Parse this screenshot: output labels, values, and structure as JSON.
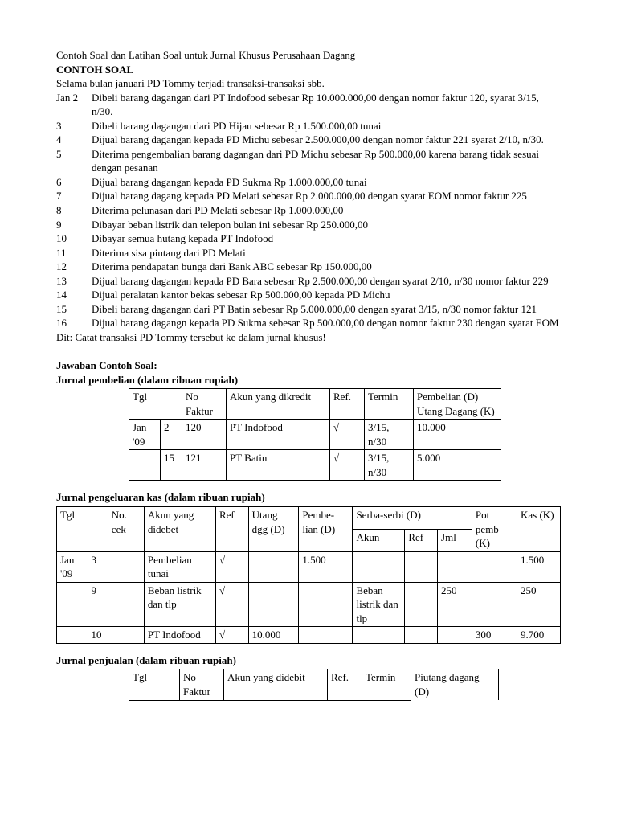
{
  "title": "Contoh Soal dan Latihan Soal untuk Jurnal Khusus Perusahaan Dagang",
  "heading1": "CONTOH SOAL",
  "intro": "Selama bulan januari PD Tommy terjadi transaksi-transaksi sbb.",
  "lines": [
    {
      "n": "Jan 2",
      "t": "Dibeli barang dagangan dari PT Indofood sebesar Rp 10.000.000,00 dengan nomor faktur 120, syarat 3/15, n/30."
    },
    {
      "n": "3",
      "t": "Dibeli barang dagangan dari PD Hijau sebesar Rp 1.500.000,00 tunai"
    },
    {
      "n": "4",
      "t": "Dijual barang dagangan kepada PD Michu sebesar 2.500.000,00 dengan nomor faktur 221 syarat 2/10, n/30."
    },
    {
      "n": "5",
      "t": "Diterima pengembalian barang dagangan dari PD Michu sebesar Rp 500.000,00 karena barang tidak sesuai dengan pesanan"
    },
    {
      "n": "6",
      "t": "Dijual barang dagangan kepada PD Sukma Rp 1.000.000,00 tunai"
    },
    {
      "n": "7",
      "t": "Dijual barang dagang kepada PD Melati sebesar Rp 2.000.000,00 dengan syarat EOM nomor faktur 225"
    },
    {
      "n": "8",
      "t": "Diterima pelunasan dari PD Melati sebesar Rp 1.000.000,00"
    },
    {
      "n": "9",
      "t": "Dibayar beban listrik dan telepon bulan ini sebesar Rp 250.000,00"
    },
    {
      "n": "10",
      "t": "Dibayar semua hutang kepada PT Indofood"
    },
    {
      "n": "11",
      "t": "Diterima sisa piutang dari PD Melati"
    },
    {
      "n": "12",
      "t": "Diterima pendapatan bunga dari Bank ABC sebesar Rp 150.000,00"
    },
    {
      "n": "13",
      "t": "Dijual barang dagangan kepada PD Bara sebesar Rp 2.500.000,00 dengan syarat 2/10, n/30 nomor faktur 229"
    },
    {
      "n": "14",
      "t": "Dijual peralatan kantor bekas sebesar Rp 500.000,00 kepada PD Michu"
    },
    {
      "n": "15",
      "t": "Dibeli barang dagangan dari PT Batin sebesar Rp 5.000.000,00 dengan syarat 3/15, n/30 nomor faktur 121"
    },
    {
      "n": "16",
      "t": "Dijual barang dagangn kepada PD Sukma sebesar Rp 500.000,00 dengan nomor faktur 230 dengan syarat EOM"
    }
  ],
  "dit": "Dit: Catat transaksi PD Tommy tersebut ke dalam jurnal khusus!",
  "answer_h": "Jawaban Contoh Soal:",
  "t1": {
    "title": "Jurnal pembelian (dalam ribuan rupiah)",
    "head": {
      "tgl": "Tgl",
      "no": "No Faktur",
      "akun": "Akun yang dikredit",
      "ref": "Ref.",
      "termin": "Termin",
      "last": "Pembelian (D) Utang Dagang (K)"
    },
    "rows": [
      {
        "m": "Jan '09",
        "d": "2",
        "no": "120",
        "akun": "PT Indofood",
        "ref": "√",
        "termin": "3/15, n/30",
        "val": "10.000"
      },
      {
        "m": "",
        "d": "15",
        "no": "121",
        "akun": "PT Batin",
        "ref": "√",
        "termin": "3/15, n/30",
        "val": "5.000"
      }
    ]
  },
  "t2": {
    "title": "Jurnal pengeluaran kas (dalam ribuan rupiah)",
    "head": {
      "tgl": "Tgl",
      "no": "No. cek",
      "akun": "Akun yang didebet",
      "ref": "Ref",
      "utang": "Utang dgg (D)",
      "pembe": "Pembe-lian (D)",
      "serba": "Serba-serbi (D)",
      "sa": "Akun",
      "sr": "Ref",
      "sj": "Jml",
      "pot": "Pot pemb (K)",
      "kas": "Kas (K)"
    },
    "rows": [
      {
        "m": "Jan '09",
        "d": "3",
        "no": "",
        "akun": "Pembelian tunai",
        "ref": "√",
        "utang": "",
        "pembe": "1.500",
        "sa": "",
        "sr": "",
        "sj": "",
        "pot": "",
        "kas": "1.500"
      },
      {
        "m": "",
        "d": "9",
        "no": "",
        "akun": "Beban listrik dan tlp",
        "ref": "√",
        "utang": "",
        "pembe": "",
        "sa": "Beban listrik dan tlp",
        "sr": "",
        "sj": "250",
        "pot": "",
        "kas": "250"
      },
      {
        "m": "",
        "d": "10",
        "no": "",
        "akun": "PT Indofood",
        "ref": "√",
        "utang": "10.000",
        "pembe": "",
        "sa": "",
        "sr": "",
        "sj": "",
        "pot": "300",
        "kas": "9.700"
      }
    ]
  },
  "t3": {
    "title": "Jurnal penjualan (dalam ribuan rupiah)",
    "head": {
      "tgl": "Tgl",
      "no": "No Faktur",
      "akun": "Akun yang didebit",
      "ref": "Ref.",
      "termin": "Termin",
      "last": "Piutang dagang (D)"
    }
  }
}
